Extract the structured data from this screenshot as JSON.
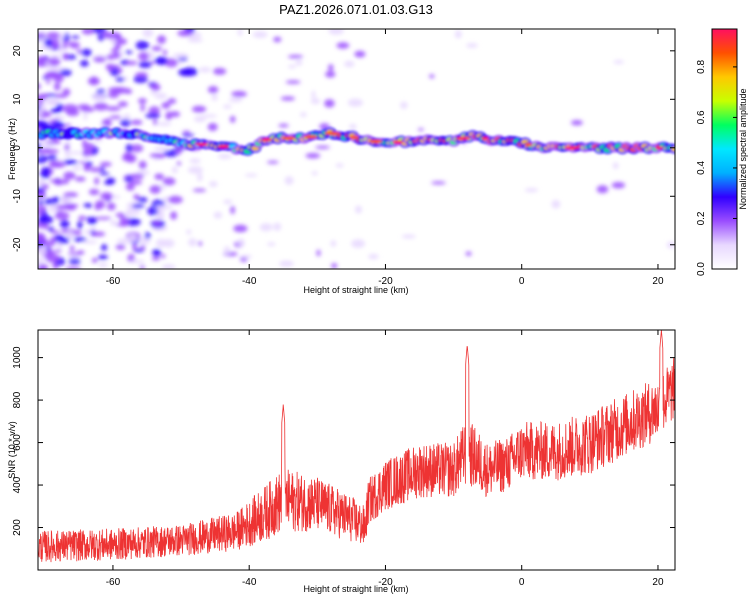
{
  "chart_data": [
    {
      "type": "heatmap",
      "title": "PAZ1.2026.071.01.03.G13",
      "xlabel": "Height of straight line (km)",
      "ylabel": "Frequency (Hz)",
      "xlim": [
        -71,
        22.5
      ],
      "ylim": [
        -25,
        24.5
      ],
      "xticks": [
        -60,
        -40,
        -20,
        0,
        20
      ],
      "yticks": [
        -20,
        -10,
        0,
        10,
        20
      ],
      "xtick_labels": [
        "-60",
        "-40",
        "-20",
        "0",
        "20"
      ],
      "ytick_labels": [
        "-20",
        "-10",
        "0",
        "10",
        "20"
      ],
      "colorbar": {
        "label": "Normalized spectral amplitude",
        "range": [
          0,
          0.95
        ],
        "ticks": [
          0.0,
          0.2,
          0.4,
          0.6,
          0.8
        ],
        "tick_labels": [
          "0.0",
          "0.2",
          "0.4",
          "0.6",
          "0.8"
        ],
        "colors": [
          "#ffffff",
          "#e8d8ff",
          "#9a4dff",
          "#3000ff",
          "#00b0ff",
          "#00e8ff",
          "#00ff60",
          "#c8ff00",
          "#ffc800",
          "#ff5000",
          "#ff1060"
        ]
      },
      "ridge": {
        "description_points_x": [
          -70,
          -60,
          -55,
          -50,
          -45,
          -40,
          -37,
          -32,
          -28,
          -24,
          -20,
          -15,
          -10,
          -7,
          -4,
          0,
          3,
          8,
          14,
          20,
          22.5
        ],
        "frequency_hz": [
          3,
          3,
          2.5,
          1,
          0.5,
          -0.5,
          2,
          2,
          3,
          2,
          1,
          1.5,
          1.5,
          2.5,
          1.5,
          1,
          0,
          0,
          0,
          0,
          0
        ]
      }
    },
    {
      "type": "line",
      "title": "",
      "xlabel": "Height of straight line (km)",
      "ylabel": "SNR (10 * v/v)",
      "xlim": [
        -71,
        22.5
      ],
      "ylim": [
        0,
        1130
      ],
      "xticks": [
        -60,
        -40,
        -20,
        0,
        20
      ],
      "yticks": [
        200,
        400,
        600,
        800,
        1000
      ],
      "xtick_labels": [
        "-60",
        "-40",
        "-20",
        "0",
        "20"
      ],
      "ytick_labels": [
        "200",
        "400",
        "600",
        "800",
        "1000"
      ],
      "series": [
        {
          "name": "SNR",
          "color": "#ee3333",
          "trend_x": [
            -71,
            -60,
            -50,
            -42,
            -38,
            -35,
            -30,
            -25,
            -23,
            -22.5,
            -20,
            -15,
            -10,
            -8,
            -5,
            -2,
            0,
            5,
            10,
            15,
            20,
            22.5
          ],
          "trend_y": [
            110,
            120,
            140,
            180,
            260,
            330,
            310,
            240,
            200,
            320,
            400,
            470,
            470,
            560,
            470,
            500,
            560,
            560,
            600,
            680,
            760,
            860
          ],
          "spread": [
            75,
            75,
            75,
            90,
            130,
            150,
            130,
            110,
            100,
            110,
            120,
            130,
            130,
            160,
            130,
            130,
            140,
            140,
            150,
            150,
            150,
            150
          ],
          "peaks": [
            {
              "x": -35,
              "y": 780
            },
            {
              "x": -8,
              "y": 1060
            },
            {
              "x": 20.5,
              "y": 1130
            }
          ]
        }
      ]
    }
  ]
}
